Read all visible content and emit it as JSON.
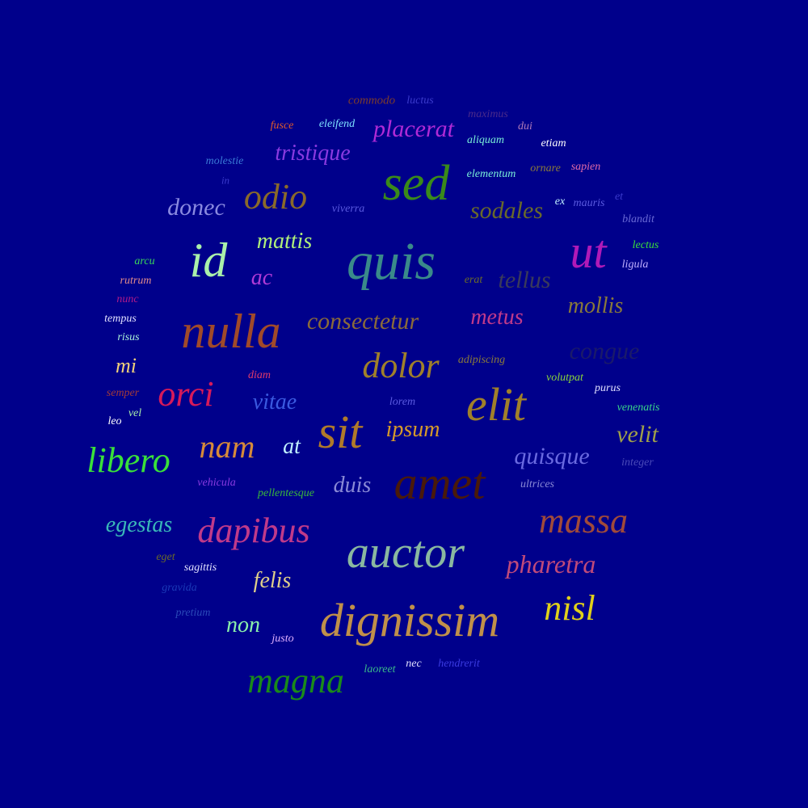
{
  "background_color": "#00008b",
  "words": [
    {
      "text": "commodo",
      "color": "#7a3b2e",
      "weight": 15
    },
    {
      "text": "luctus",
      "color": "#3a3acc",
      "weight": 14
    },
    {
      "text": "maximus",
      "color": "#4a2a8a",
      "weight": 14
    },
    {
      "text": "fusce",
      "color": "#e05a2a",
      "weight": 14
    },
    {
      "text": "eleifend",
      "color": "#7de0ff",
      "weight": 14
    },
    {
      "text": "placerat",
      "color": "#b02ad6",
      "weight": 30
    },
    {
      "text": "dui",
      "color": "#b07ab8",
      "weight": 14
    },
    {
      "text": "aliquam",
      "color": "#7af0d8",
      "weight": 14
    },
    {
      "text": "etiam",
      "color": "#ffffff",
      "weight": 14
    },
    {
      "text": "tristique",
      "color": "#8a3ae0",
      "weight": 28
    },
    {
      "text": "molestie",
      "color": "#3a7ad6",
      "weight": 14
    },
    {
      "text": "sed",
      "color": "#3a8a1a",
      "weight": 62
    },
    {
      "text": "elementum",
      "color": "#7af0d8",
      "weight": 14
    },
    {
      "text": "ornare",
      "color": "#8a7a3a",
      "weight": 14
    },
    {
      "text": "sapien",
      "color": "#e06aa8",
      "weight": 14
    },
    {
      "text": "in",
      "color": "#3a3acc",
      "weight": 13
    },
    {
      "text": "odio",
      "color": "#8a6a2a",
      "weight": 44
    },
    {
      "text": "donec",
      "color": "#8a8ae0",
      "weight": 30
    },
    {
      "text": "viverra",
      "color": "#5a5ae0",
      "weight": 14
    },
    {
      "text": "sodales",
      "color": "#6a6a2a",
      "weight": 30
    },
    {
      "text": "ex",
      "color": "#c0f0ff",
      "weight": 14
    },
    {
      "text": "mauris",
      "color": "#5a5ae0",
      "weight": 14
    },
    {
      "text": "et",
      "color": "#3a3acc",
      "weight": 14
    },
    {
      "text": "blandit",
      "color": "#6a6ad6",
      "weight": 14
    },
    {
      "text": "mattis",
      "color": "#b0f07a",
      "weight": 28
    },
    {
      "text": "id",
      "color": "#aaf0aa",
      "weight": 60
    },
    {
      "text": "quis",
      "color": "#3a8a8a",
      "weight": 66
    },
    {
      "text": "ut",
      "color": "#b01ab8",
      "weight": 58
    },
    {
      "text": "lectus",
      "color": "#3ae03a",
      "weight": 14
    },
    {
      "text": "arcu",
      "color": "#3ad65a",
      "weight": 14
    },
    {
      "text": "ligula",
      "color": "#c0b0ff",
      "weight": 14
    },
    {
      "text": "ac",
      "color": "#b03ad6",
      "weight": 28
    },
    {
      "text": "rutrum",
      "color": "#e08a8a",
      "weight": 14
    },
    {
      "text": "erat",
      "color": "#6a6a2a",
      "weight": 14
    },
    {
      "text": "tellus",
      "color": "#3a3a5a",
      "weight": 30
    },
    {
      "text": "nunc",
      "color": "#b01a8a",
      "weight": 14
    },
    {
      "text": "mollis",
      "color": "#8a7a3a",
      "weight": 28
    },
    {
      "text": "tempus",
      "color": "#e0e0ff",
      "weight": 14
    },
    {
      "text": "consectetur",
      "color": "#8a6a3a",
      "weight": 30
    },
    {
      "text": "metus",
      "color": "#c03a8a",
      "weight": 28
    },
    {
      "text": "nulla",
      "color": "#a04a2a",
      "weight": 60
    },
    {
      "text": "risus",
      "color": "#aaf0d8",
      "weight": 14
    },
    {
      "text": "congue",
      "color": "#1a1a6a",
      "weight": 30
    },
    {
      "text": "mi",
      "color": "#f0d07a",
      "weight": 26
    },
    {
      "text": "dolor",
      "color": "#a0802a",
      "weight": 44
    },
    {
      "text": "adipiscing",
      "color": "#8a7a3a",
      "weight": 14
    },
    {
      "text": "diam",
      "color": "#e03a6a",
      "weight": 14
    },
    {
      "text": "volutpat",
      "color": "#8ad63a",
      "weight": 14
    },
    {
      "text": "orci",
      "color": "#d61a5a",
      "weight": 44
    },
    {
      "text": "purus",
      "color": "#e0e0ff",
      "weight": 14
    },
    {
      "text": "semper",
      "color": "#a03a3a",
      "weight": 14
    },
    {
      "text": "vitae",
      "color": "#3a5ae0",
      "weight": 28
    },
    {
      "text": "lorem",
      "color": "#5a5ae0",
      "weight": 14
    },
    {
      "text": "elit",
      "color": "#a0802a",
      "weight": 58
    },
    {
      "text": "venenatis",
      "color": "#3ad68a",
      "weight": 14
    },
    {
      "text": "vel",
      "color": "#aaf0aa",
      "weight": 14
    },
    {
      "text": "leo",
      "color": "#ffffff",
      "weight": 14
    },
    {
      "text": "sit",
      "color": "#b07a2a",
      "weight": 58
    },
    {
      "text": "ipsum",
      "color": "#d69a2a",
      "weight": 28
    },
    {
      "text": "velit",
      "color": "#a0a04a",
      "weight": 30
    },
    {
      "text": "nam",
      "color": "#d68a3a",
      "weight": 40
    },
    {
      "text": "at",
      "color": "#c0f0ff",
      "weight": 28
    },
    {
      "text": "libero",
      "color": "#3ae03a",
      "weight": 44
    },
    {
      "text": "quisque",
      "color": "#6a6ae0",
      "weight": 30
    },
    {
      "text": "integer",
      "color": "#4a4ab8",
      "weight": 14
    },
    {
      "text": "vehicula",
      "color": "#8a3ae0",
      "weight": 14
    },
    {
      "text": "pellentesque",
      "color": "#3ab83a",
      "weight": 14
    },
    {
      "text": "duis",
      "color": "#8a8ad6",
      "weight": 28
    },
    {
      "text": "amet",
      "color": "#4a1a0a",
      "weight": 58
    },
    {
      "text": "ultrices",
      "color": "#8a8ad6",
      "weight": 14
    },
    {
      "text": "egestas",
      "color": "#3ab8b8",
      "weight": 28
    },
    {
      "text": "dapibus",
      "color": "#c03a8a",
      "weight": 44
    },
    {
      "text": "massa",
      "color": "#a04a3a",
      "weight": 44
    },
    {
      "text": "auctor",
      "color": "#8ab8a0",
      "weight": 56
    },
    {
      "text": "eget",
      "color": "#6a6a2a",
      "weight": 14
    },
    {
      "text": "pharetra",
      "color": "#c04a7a",
      "weight": 32
    },
    {
      "text": "sagittis",
      "color": "#e0e0ff",
      "weight": 14
    },
    {
      "text": "felis",
      "color": "#e0d08a",
      "weight": 28
    },
    {
      "text": "gravida",
      "color": "#1a3ab8",
      "weight": 14
    },
    {
      "text": "nisl",
      "color": "#e0d01a",
      "weight": 44
    },
    {
      "text": "dignissim",
      "color": "#c0904a",
      "weight": 58
    },
    {
      "text": "pretium",
      "color": "#2a4ab8",
      "weight": 14
    },
    {
      "text": "non",
      "color": "#8af0aa",
      "weight": 28
    },
    {
      "text": "justo",
      "color": "#e0b0ff",
      "weight": 14
    },
    {
      "text": "laoreet",
      "color": "#3ab88a",
      "weight": 14
    },
    {
      "text": "nec",
      "color": "#e0e0ff",
      "weight": 14
    },
    {
      "text": "hendrerit",
      "color": "#3a3ae0",
      "weight": 14
    },
    {
      "text": "magna",
      "color": "#1a8a1a",
      "weight": 44
    }
  ]
}
